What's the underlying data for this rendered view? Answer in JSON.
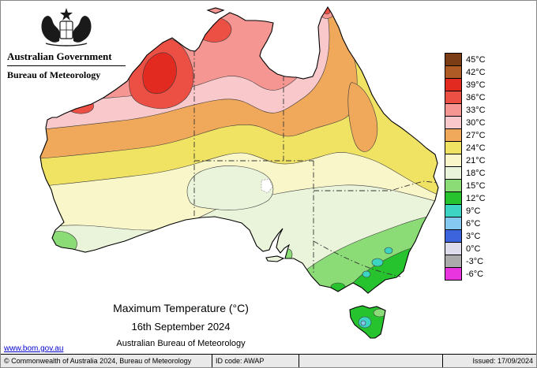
{
  "header": {
    "government": "Australian Government",
    "bureau": "Bureau of Meteorology"
  },
  "map": {
    "title": "Maximum Temperature (°C)",
    "date": "16th September 2024",
    "org": "Australian Bureau of Meteorology",
    "region": "Australia"
  },
  "legend": {
    "unit": "°C",
    "entries": [
      {
        "label": "45°C",
        "color": "#7a3d15"
      },
      {
        "label": "42°C",
        "color": "#ae5b25"
      },
      {
        "label": "39°C",
        "color": "#e32a20"
      },
      {
        "label": "36°C",
        "color": "#ec4f43"
      },
      {
        "label": "33°C",
        "color": "#f59693"
      },
      {
        "label": "30°C",
        "color": "#f8c8cb"
      },
      {
        "label": "27°C",
        "color": "#f0a85a"
      },
      {
        "label": "24°C",
        "color": "#f0e364"
      },
      {
        "label": "21°C",
        "color": "#f9f7c9"
      },
      {
        "label": "18°C",
        "color": "#eaf4da"
      },
      {
        "label": "15°C",
        "color": "#8bdb76"
      },
      {
        "label": "12°C",
        "color": "#27c32f"
      },
      {
        "label": "9°C",
        "color": "#3ed4c4"
      },
      {
        "label": "6°C",
        "color": "#85c9f0"
      },
      {
        "label": "3°C",
        "color": "#3c64dd"
      },
      {
        "label": "0°C",
        "color": "#dcdcea"
      },
      {
        "label": "-3°C",
        "color": "#ababab"
      },
      {
        "label": "-6°C",
        "color": "#e935e0"
      }
    ]
  },
  "link": {
    "text": "www.bom.gov.au"
  },
  "footer": {
    "copyright": "© Commonwealth of Australia 2024, Bureau of Meteorology",
    "id_code": "ID code: AWAP",
    "issued": "Issued: 17/09/2024"
  }
}
